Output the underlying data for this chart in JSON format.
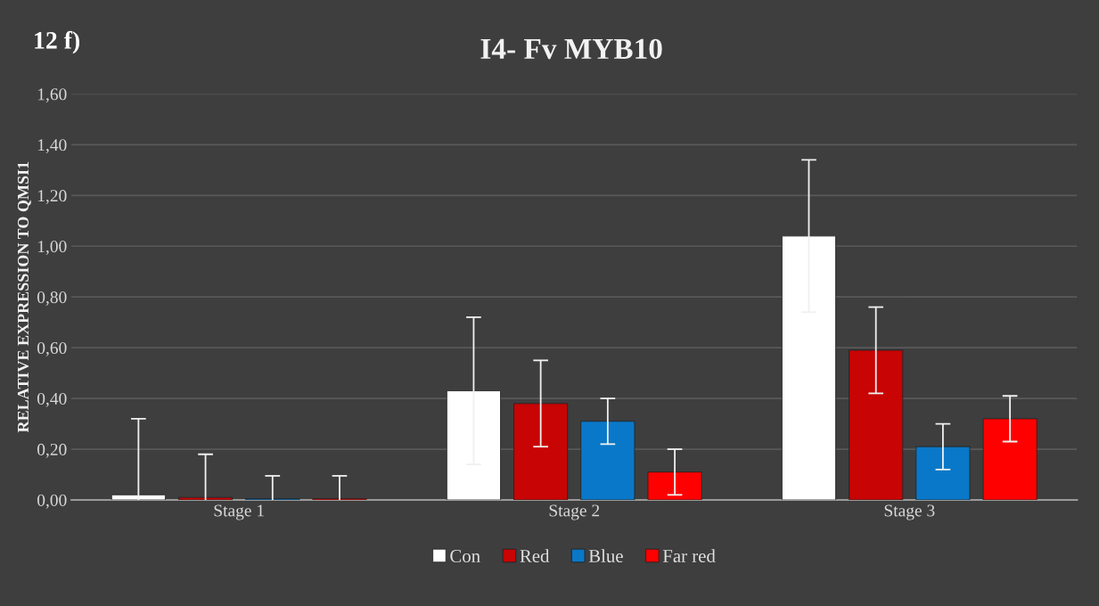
{
  "chart_data": {
    "type": "bar",
    "title": "I4- Fv MYB10",
    "ylabel": "RELATIVE EXPRESSION TO QMSI1",
    "annotations": [
      "12 f)"
    ],
    "categories": [
      "Stage 1",
      "Stage 2",
      "Stage 3"
    ],
    "series": [
      {
        "name": "Con",
        "color": "#ffffff",
        "values": [
          0.02,
          0.43,
          1.04
        ],
        "errors": [
          0.3,
          0.29,
          0.3
        ]
      },
      {
        "name": "Red",
        "color": "#c80404",
        "values": [
          0.01,
          0.38,
          0.59
        ],
        "errors": [
          0.17,
          0.17,
          0.17
        ]
      },
      {
        "name": "Blue",
        "color": "#0a78c8",
        "values": [
          0.005,
          0.31,
          0.21
        ],
        "errors": [
          0.09,
          0.09,
          0.09
        ]
      },
      {
        "name": "Far red",
        "color": "#ff0000",
        "values": [
          0.005,
          0.11,
          0.32
        ],
        "errors": [
          0.09,
          0.09,
          0.09
        ]
      }
    ],
    "ylim": [
      0,
      1.6
    ],
    "yticks": [
      {
        "value": 0,
        "label": "0,00"
      },
      {
        "value": 0.2,
        "label": "0,20"
      },
      {
        "value": 0.4,
        "label": "0,40"
      },
      {
        "value": 0.6,
        "label": "0,60"
      },
      {
        "value": 0.8,
        "label": "0,80"
      },
      {
        "value": 1.0,
        "label": "1,00"
      },
      {
        "value": 1.2,
        "label": "1,20"
      },
      {
        "value": 1.4,
        "label": "1,40"
      },
      {
        "value": 1.6,
        "label": "1,60"
      }
    ],
    "grid": "y",
    "legend": "bottom"
  }
}
